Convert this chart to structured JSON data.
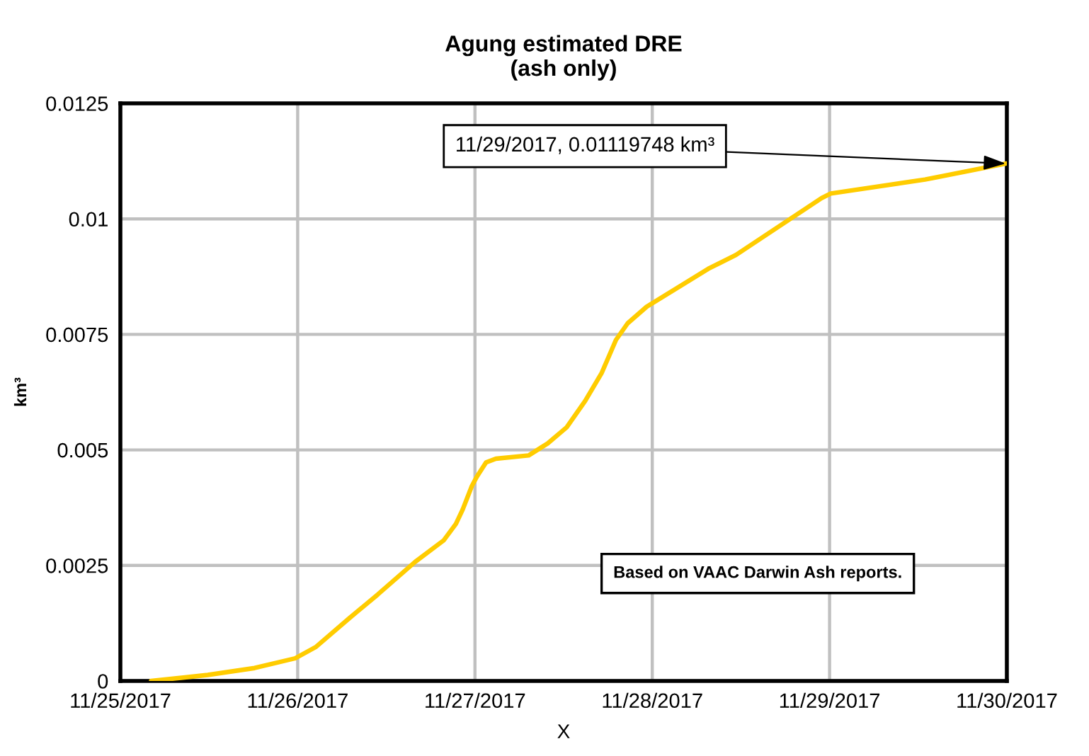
{
  "chart_data": {
    "type": "line",
    "title": "Agung estimated DRE\n(ash only)",
    "xlabel": "X",
    "ylabel": "km³",
    "x": [
      "2017-11-25T04:10",
      "2017-11-25T11:50",
      "2017-11-25T18:10",
      "2017-11-25T23:40",
      "2017-11-26T02:30",
      "2017-11-26T07:00",
      "2017-11-26T10:50",
      "2017-11-26T15:55",
      "2017-11-26T19:45",
      "2017-11-26T21:25",
      "2017-11-26T22:20",
      "2017-11-26T23:35",
      "2017-11-27T00:15",
      "2017-11-27T01:30",
      "2017-11-27T02:50",
      "2017-11-27T07:15",
      "2017-11-27T09:50",
      "2017-11-27T12:25",
      "2017-11-27T14:55",
      "2017-11-27T17:10",
      "2017-11-27T19:05",
      "2017-11-27T20:40",
      "2017-11-27T23:15",
      "2017-11-28T07:35",
      "2017-11-28T11:20",
      "2017-11-28T22:55",
      "2017-11-29T00:10",
      "2017-11-29T12:55",
      "2017-11-29T23:50"
    ],
    "series": [
      {
        "color": "#ffcc00",
        "values": [
          0,
          0.00013,
          0.00028,
          0.00049,
          0.00074,
          0.00136,
          0.00187,
          0.00258,
          0.00304,
          0.0034,
          0.00371,
          0.00422,
          0.00442,
          0.00473,
          0.00481,
          0.00488,
          0.00514,
          0.00549,
          0.00606,
          0.00667,
          0.00738,
          0.00774,
          0.0081,
          0.00892,
          0.00922,
          0.01045,
          0.01055,
          0.01085,
          0.01119748
        ]
      }
    ],
    "xlim": [
      "2017-11-25",
      "2017-11-30"
    ],
    "xticks": [
      {
        "value": "2017-11-25",
        "label": "11/25/2017"
      },
      {
        "value": "2017-11-26",
        "label": "11/26/2017"
      },
      {
        "value": "2017-11-27",
        "label": "11/27/2017"
      },
      {
        "value": "2017-11-28",
        "label": "11/28/2017"
      },
      {
        "value": "2017-11-29",
        "label": "11/29/2017"
      },
      {
        "value": "2017-11-30",
        "label": "11/30/2017"
      }
    ],
    "ylim": [
      0,
      0.0125
    ],
    "yticks": [
      0,
      0.0025,
      0.005,
      0.0075,
      0.01,
      0.0125
    ],
    "grid": true,
    "annotations": [
      {
        "text": "11/29/2017, 0.01119748 km³",
        "x": "2017-11-29T23:50",
        "y": 0.01119748
      },
      "Based on VAAC Darwin Ash reports."
    ]
  }
}
